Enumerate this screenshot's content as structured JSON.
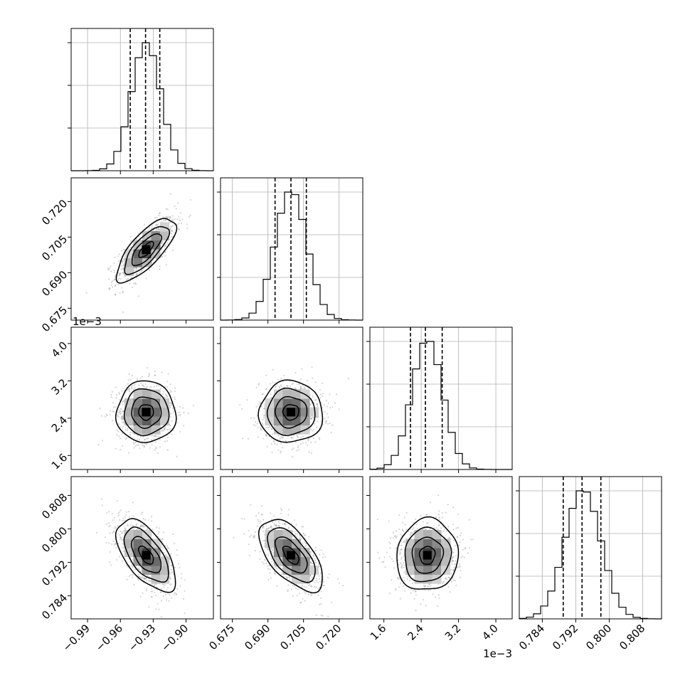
{
  "chart_data": {
    "type": "corner",
    "grid": true,
    "offset_text": "1e−3",
    "parameters": [
      {
        "range": [
          -1.005,
          -0.875
        ],
        "ticks": [
          -0.99,
          -0.96,
          -0.93,
          -0.9
        ],
        "tick_labels": [
          "−0.99",
          "−0.96",
          "−0.93",
          "−0.90"
        ],
        "mean": -0.9365,
        "sigma": 0.0135,
        "quantiles": [
          -0.951,
          -0.937,
          -0.924
        ]
      },
      {
        "range": [
          0.67,
          0.73
        ],
        "ticks": [
          0.675,
          0.69,
          0.705,
          0.72
        ],
        "tick_labels": [
          "0.675",
          "0.690",
          "0.705",
          "0.720"
        ],
        "mean": 0.6997,
        "sigma": 0.0067,
        "quantiles": [
          0.693,
          0.6997,
          0.7062
        ]
      },
      {
        "range": [
          1.3,
          4.35
        ],
        "ticks": [
          1.6,
          2.4,
          3.2,
          4.0
        ],
        "tick_labels": [
          "1.6",
          "2.4",
          "3.2",
          "4.0"
        ],
        "mean": 2.53,
        "sigma": 0.33,
        "quantiles": [
          2.17,
          2.49,
          2.85
        ]
      },
      {
        "range": [
          0.7785,
          0.8125
        ],
        "ticks": [
          0.784,
          0.792,
          0.8,
          0.808
        ],
        "tick_labels": [
          "0.784",
          "0.792",
          "0.800",
          "0.808"
        ],
        "mean": 0.7937,
        "sigma": 0.0043,
        "quantiles": [
          0.789,
          0.7935,
          0.798
        ]
      }
    ],
    "histograms": [
      {
        "param": 0,
        "peak": 1.0,
        "shape": "gaussian"
      },
      {
        "param": 1,
        "peak": 1.0,
        "shape": "gaussian"
      },
      {
        "param": 2,
        "peak": 1.0,
        "shape": "gaussian"
      },
      {
        "param": 3,
        "peak": 1.0,
        "shape": "gaussian"
      }
    ],
    "pairs": [
      {
        "x": 0,
        "y": 1,
        "correlation": 0.75
      },
      {
        "x": 0,
        "y": 2,
        "correlation": 0.0
      },
      {
        "x": 1,
        "y": 2,
        "correlation": 0.0
      },
      {
        "x": 0,
        "y": 3,
        "correlation": -0.6
      },
      {
        "x": 1,
        "y": 3,
        "correlation": -0.6
      },
      {
        "x": 2,
        "y": 3,
        "correlation": 0.05
      }
    ],
    "contour_levels_sigma": [
      0.5,
      1.0,
      1.5,
      2.0
    ]
  }
}
